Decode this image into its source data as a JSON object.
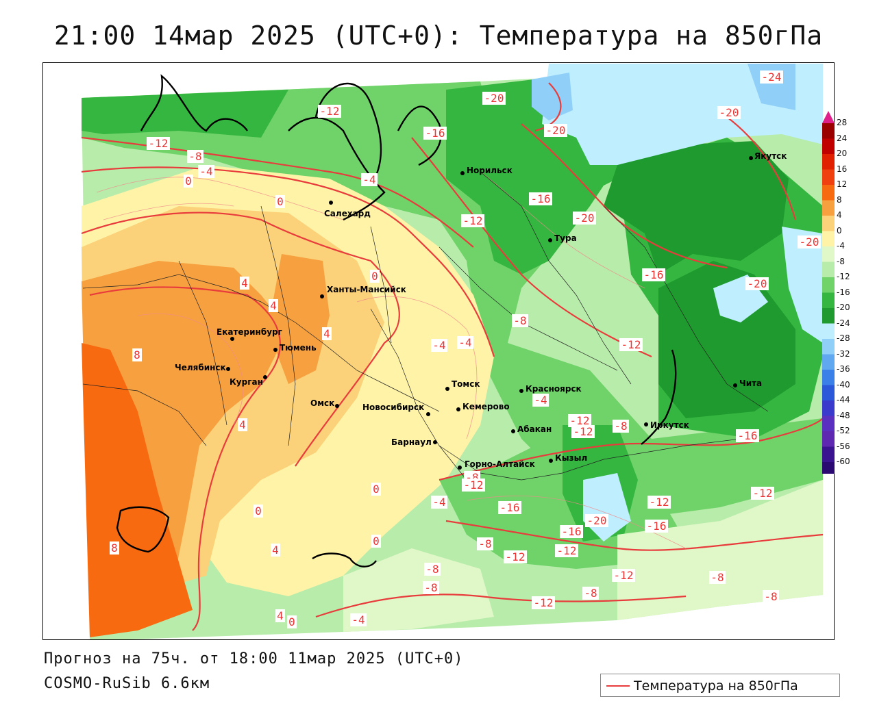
{
  "title": "21:00 14мар 2025 (UTC+0): Температура на 850гПа",
  "forecast_line": "Прогноз на 75ч. от 18:00 11мар 2025 (UTC+0)",
  "model_line": "COSMO-RuSib 6.6км",
  "legend": {
    "line_label": "Температура на 850гПа",
    "line_color": "#e83c3c"
  },
  "colorbar": {
    "ticks": [
      "28",
      "24",
      "20",
      "16",
      "12",
      "8",
      "4",
      "0",
      "-4",
      "-8",
      "-12",
      "-16",
      "-20",
      "-24",
      "-28",
      "-32",
      "-36",
      "-40",
      "-44",
      "-48",
      "-52",
      "-56",
      "-60"
    ],
    "colors": [
      "#9b0000",
      "#c00000",
      "#e02000",
      "#f04010",
      "#f86a10",
      "#f7a040",
      "#fbd27a",
      "#fff3a8",
      "#e0f7c8",
      "#b8ecaa",
      "#6fd36a",
      "#35b640",
      "#1f9a2e",
      "#bfeeff",
      "#90d0f8",
      "#60a8f0",
      "#3a80e8",
      "#2a58d8",
      "#3a3acc",
      "#5a30c0",
      "#5e28b0",
      "#3a1490",
      "#2a0a70"
    ]
  },
  "cities": [
    {
      "name": "Норильск"
    },
    {
      "name": "Якутск"
    },
    {
      "name": "Салехард"
    },
    {
      "name": "Тура"
    },
    {
      "name": "Ханты-Мансийск"
    },
    {
      "name": "Екатеринбург"
    },
    {
      "name": "Тюмень"
    },
    {
      "name": "Челябинск"
    },
    {
      "name": "Курган"
    },
    {
      "name": "Омск"
    },
    {
      "name": "Новосибирск"
    },
    {
      "name": "Томск"
    },
    {
      "name": "Кемерово"
    },
    {
      "name": "Красноярск"
    },
    {
      "name": "Абакан"
    },
    {
      "name": "Барнаул"
    },
    {
      "name": "Горно-Алтайск"
    },
    {
      "name": "Кызыл"
    },
    {
      "name": "Иркутск"
    },
    {
      "name": "Чита"
    }
  ],
  "isotherm_labels": [
    "-24",
    "-20",
    "-20",
    "-20",
    "-16",
    "-12",
    "-12",
    "-8",
    "-4",
    "0",
    "-4",
    "0",
    "-16",
    "-12",
    "-20",
    "-16",
    "-20",
    "-20",
    "4",
    "4",
    "4",
    "0",
    "-8",
    "-4",
    "-4",
    "-12",
    "8",
    "-4",
    "-12",
    "-12",
    "-8",
    "-8",
    "-16",
    "-12",
    "-4",
    "0",
    "4",
    "0",
    "4",
    "0",
    "-20",
    "-16",
    "-12",
    "-16",
    "-8",
    "-12",
    "-16",
    "-12",
    "-12",
    "-8",
    "-8",
    "-12",
    "-8",
    "8",
    "4",
    "0",
    "-8",
    "-4",
    "-8",
    "-12"
  ]
}
